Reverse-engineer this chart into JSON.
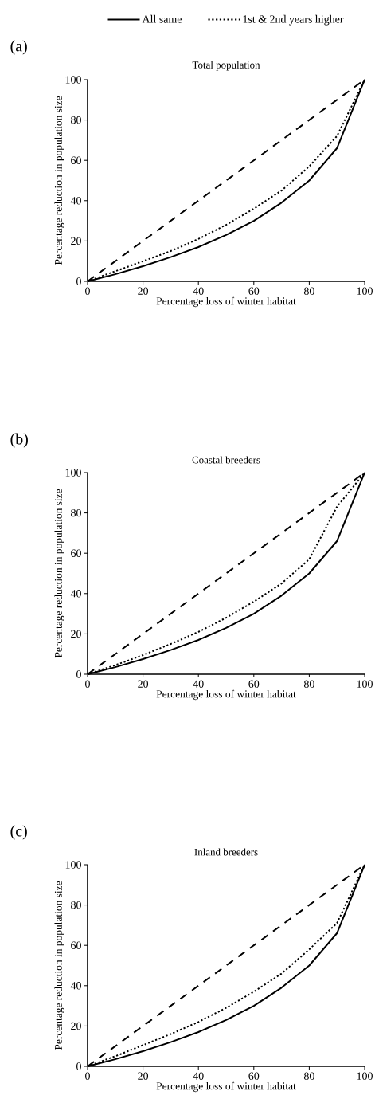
{
  "chart_data": [
    {
      "type": "line",
      "title": "Total population",
      "xlabel": "Percentage loss of winter habitat",
      "ylabel": "Percentage reduction in population size",
      "annotations": [
        "(a)"
      ],
      "x": [
        0,
        10,
        20,
        30,
        40,
        50,
        60,
        70,
        80,
        90,
        100
      ],
      "xlim": [
        0,
        100
      ],
      "ylim": [
        0,
        100
      ],
      "xticks": [
        0,
        20,
        40,
        60,
        80,
        100
      ],
      "yticks": [
        0,
        20,
        40,
        60,
        80,
        100
      ],
      "legend": "top",
      "series": [
        {
          "name": "All same",
          "color": "#000000",
          "line_style": "solid",
          "values": [
            0,
            3.5,
            7.5,
            12,
            17,
            23,
            30,
            39,
            50,
            66,
            100
          ]
        },
        {
          "name": "1st & 2nd years higher",
          "color": "#000000",
          "line_style": "dotted",
          "values": [
            0,
            5,
            10,
            15,
            21,
            28,
            36,
            45,
            57,
            72,
            100
          ]
        },
        {
          "color": "#000000",
          "line_style": "dashed",
          "values": [
            0,
            10,
            20,
            30,
            40,
            50,
            60,
            70,
            80,
            90,
            100
          ]
        }
      ]
    },
    {
      "type": "line",
      "title": "Coastal breeders",
      "xlabel": "Percentage loss of winter habitat",
      "ylabel": "Percentage reduction in population size",
      "annotations": [
        "(b)"
      ],
      "x": [
        0,
        10,
        20,
        30,
        40,
        50,
        60,
        70,
        80,
        90,
        100
      ],
      "xlim": [
        0,
        100
      ],
      "ylim": [
        0,
        100
      ],
      "xticks": [
        0,
        20,
        40,
        60,
        80,
        100
      ],
      "yticks": [
        0,
        20,
        40,
        60,
        80,
        100
      ],
      "series": [
        {
          "color": "#000000",
          "line_style": "solid",
          "values": [
            0,
            3.5,
            7.5,
            12,
            17,
            23,
            30,
            39,
            50,
            66,
            100
          ]
        },
        {
          "color": "#000000",
          "line_style": "dotted",
          "values": [
            0,
            4.5,
            9.5,
            15,
            21,
            28,
            36,
            45,
            57,
            83,
            100
          ]
        },
        {
          "color": "#000000",
          "line_style": "dashed",
          "values": [
            0,
            10,
            20,
            30,
            40,
            50,
            60,
            70,
            80,
            90,
            100
          ]
        }
      ]
    },
    {
      "type": "line",
      "title": "Inland breeders",
      "xlabel": "Percentage loss of winter habitat",
      "ylabel": "Percentage reduction in population size",
      "annotations": [
        "(c)"
      ],
      "x": [
        0,
        10,
        20,
        30,
        40,
        50,
        60,
        70,
        80,
        90,
        100
      ],
      "xlim": [
        0,
        100
      ],
      "ylim": [
        0,
        100
      ],
      "xticks": [
        0,
        20,
        40,
        60,
        80,
        100
      ],
      "yticks": [
        0,
        20,
        40,
        60,
        80,
        100
      ],
      "series": [
        {
          "color": "#000000",
          "line_style": "solid",
          "values": [
            0,
            3.5,
            7.5,
            12,
            17,
            23,
            30,
            39,
            50,
            66,
            100
          ]
        },
        {
          "color": "#000000",
          "line_style": "dotted",
          "values": [
            0,
            5,
            10.5,
            16,
            22,
            29,
            37,
            46,
            58,
            71,
            100
          ]
        },
        {
          "color": "#000000",
          "line_style": "dashed",
          "values": [
            0,
            10,
            20,
            30,
            40,
            50,
            60,
            70,
            80,
            90,
            100
          ]
        }
      ]
    }
  ]
}
